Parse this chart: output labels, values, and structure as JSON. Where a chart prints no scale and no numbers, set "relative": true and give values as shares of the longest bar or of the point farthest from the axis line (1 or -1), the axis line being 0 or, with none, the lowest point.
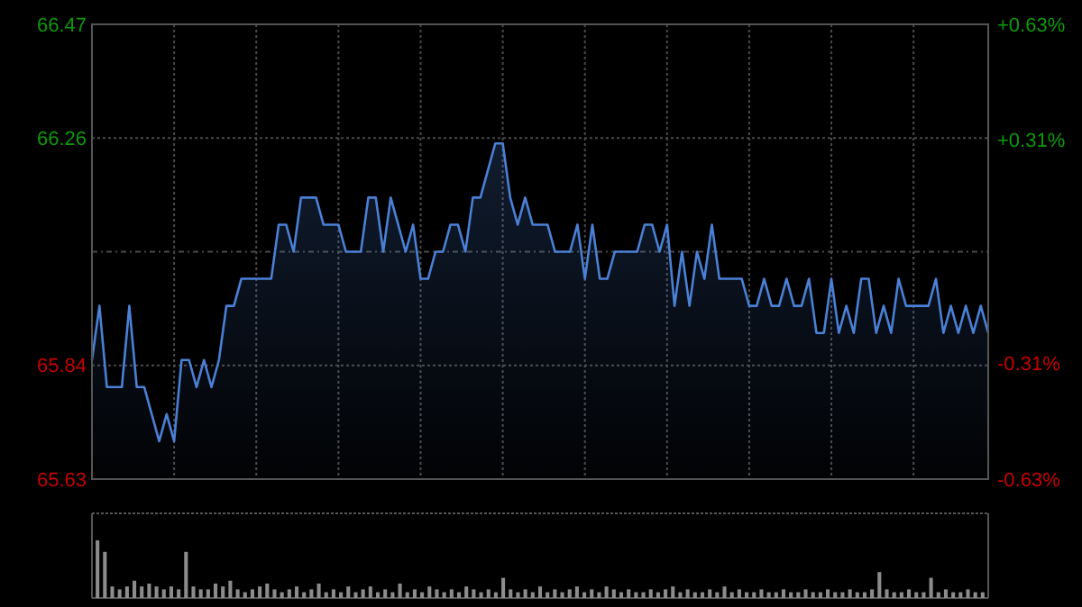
{
  "chart_data": [
    {
      "type": "area",
      "categories": [
        null,
        null,
        null,
        null,
        null,
        null,
        null,
        null,
        null,
        null,
        null,
        null,
        null,
        null,
        null,
        null,
        null,
        null,
        null,
        null,
        null,
        null,
        null,
        null,
        null,
        null,
        null,
        null,
        null,
        null,
        null,
        null,
        null,
        null,
        null,
        null,
        null,
        null,
        null,
        null,
        null,
        null,
        null,
        null,
        null,
        null,
        null,
        null,
        null,
        null,
        null,
        null,
        null,
        null,
        null,
        null,
        null,
        null,
        null,
        null,
        null,
        null,
        null,
        null,
        null,
        null,
        null,
        null,
        null,
        null,
        null,
        null,
        null,
        null,
        null,
        null,
        null,
        null,
        null,
        null,
        null,
        null,
        null,
        null,
        null,
        null,
        null,
        null,
        null,
        null,
        null,
        null,
        null,
        null,
        null,
        null,
        null,
        null,
        null,
        null,
        null,
        null,
        null,
        null,
        null,
        null,
        null,
        null,
        null,
        null,
        null,
        null,
        null,
        null,
        null,
        null,
        null,
        null,
        null,
        null,
        null
      ],
      "ylim": [
        65.63,
        66.47
      ],
      "yticks": [
        65.63,
        65.84,
        {
          "value": 66.05,
          "label": null
        },
        66.26,
        66.47
      ],
      "y2lim": [
        -0.63,
        0.63
      ],
      "y2ticks": [
        {
          "value": -0.63,
          "label": "-0.63%"
        },
        {
          "value": -0.31,
          "label": "-0.31%"
        },
        {
          "value": 0.31,
          "label": "+0.31%"
        },
        {
          "value": 0.63,
          "label": "+0.63%"
        }
      ],
      "grid": true,
      "series": [
        {
          "color": "#4a80d6",
          "values": [
            65.85,
            65.95,
            65.8,
            65.8,
            65.8,
            65.95,
            65.8,
            65.8,
            65.75,
            65.7,
            65.75,
            65.7,
            65.85,
            65.85,
            65.8,
            65.85,
            65.8,
            65.85,
            65.95,
            65.95,
            66.0,
            66.0,
            66.0,
            66.0,
            66.0,
            66.1,
            66.1,
            66.05,
            66.15,
            66.15,
            66.15,
            66.1,
            66.1,
            66.1,
            66.05,
            66.05,
            66.05,
            66.15,
            66.15,
            66.05,
            66.15,
            66.1,
            66.05,
            66.1,
            66.0,
            66.0,
            66.05,
            66.05,
            66.1,
            66.1,
            66.05,
            66.15,
            66.15,
            66.2,
            66.25,
            66.25,
            66.15,
            66.1,
            66.15,
            66.1,
            66.1,
            66.1,
            66.05,
            66.05,
            66.05,
            66.1,
            66.0,
            66.1,
            66.0,
            66.0,
            66.05,
            66.05,
            66.05,
            66.05,
            66.1,
            66.1,
            66.05,
            66.1,
            65.95,
            66.05,
            65.95,
            66.05,
            66.0,
            66.1,
            66.0,
            66.0,
            66.0,
            66.0,
            65.95,
            65.95,
            66.0,
            65.95,
            65.95,
            66.0,
            65.95,
            65.95,
            66.0,
            65.9,
            65.9,
            66.0,
            65.9,
            65.95,
            65.9,
            66.0,
            66.0,
            65.9,
            65.95,
            65.9,
            66.0,
            65.95,
            65.95,
            65.95,
            65.95,
            66.0,
            65.9,
            65.95,
            65.9,
            65.95,
            65.9,
            65.95,
            65.9
          ]
        }
      ]
    },
    {
      "type": "bar",
      "relative": true,
      "color": "#8c8c8c",
      "categories": [
        null,
        null,
        null,
        null,
        null,
        null,
        null,
        null,
        null,
        null,
        null,
        null,
        null,
        null,
        null,
        null,
        null,
        null,
        null,
        null,
        null,
        null,
        null,
        null,
        null,
        null,
        null,
        null,
        null,
        null,
        null,
        null,
        null,
        null,
        null,
        null,
        null,
        null,
        null,
        null,
        null,
        null,
        null,
        null,
        null,
        null,
        null,
        null,
        null,
        null,
        null,
        null,
        null,
        null,
        null,
        null,
        null,
        null,
        null,
        null,
        null,
        null,
        null,
        null,
        null,
        null,
        null,
        null,
        null,
        null,
        null,
        null,
        null,
        null,
        null,
        null,
        null,
        null,
        null,
        null,
        null,
        null,
        null,
        null,
        null,
        null,
        null,
        null,
        null,
        null,
        null,
        null,
        null,
        null,
        null,
        null,
        null,
        null,
        null,
        null,
        null,
        null,
        null,
        null,
        null,
        null,
        null,
        null,
        null,
        null,
        null,
        null,
        null,
        null,
        null,
        null,
        null,
        null,
        null,
        null,
        null
      ],
      "values": [
        1,
        0.8,
        0.2,
        0.15,
        0.2,
        0.3,
        0.2,
        0.25,
        0.2,
        0.15,
        0.2,
        0.15,
        0.8,
        0.2,
        0.15,
        0.15,
        0.25,
        0.2,
        0.3,
        0.15,
        0.1,
        0.15,
        0.2,
        0.25,
        0.15,
        0.1,
        0.15,
        0.2,
        0.1,
        0.15,
        0.25,
        0.1,
        0.15,
        0.1,
        0.2,
        0.1,
        0.15,
        0.2,
        0.1,
        0.15,
        0.1,
        0.25,
        0.1,
        0.15,
        0.1,
        0.2,
        0.15,
        0.1,
        0.15,
        0.1,
        0.2,
        0.15,
        0.1,
        0.15,
        0.1,
        0.35,
        0.15,
        0.1,
        0.15,
        0.1,
        0.2,
        0.1,
        0.15,
        0.1,
        0.15,
        0.2,
        0.1,
        0.15,
        0.1,
        0.2,
        0.15,
        0.1,
        0.15,
        0.1,
        0.1,
        0.15,
        0.1,
        0.15,
        0.2,
        0.1,
        0.15,
        0.1,
        0.1,
        0.15,
        0.1,
        0.2,
        0.1,
        0.15,
        0.1,
        0.1,
        0.15,
        0.1,
        0.1,
        0.15,
        0.1,
        0.1,
        0.15,
        0.1,
        0.1,
        0.15,
        0.1,
        0.1,
        0.15,
        0.1,
        0.1,
        0.15,
        0.45,
        0.15,
        0.1,
        0.1,
        0.15,
        0.1,
        0.1,
        0.35,
        0.1,
        0.15,
        0.1,
        0.1,
        0.15,
        0.1,
        0.1
      ]
    }
  ]
}
